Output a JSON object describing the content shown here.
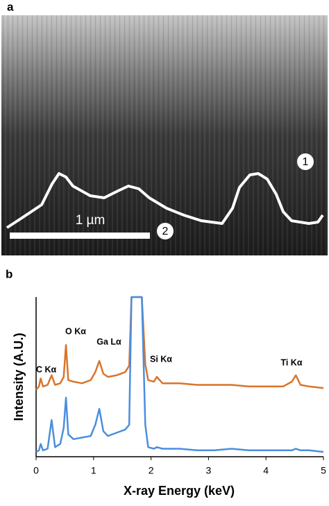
{
  "panel_a": {
    "label": "a",
    "scale_bar": "1 µm",
    "markers": [
      "1",
      "2"
    ]
  },
  "chart_data": {
    "type": "line",
    "label": "b",
    "x_label": "X-ray Energy (keV)",
    "y_label": "Intensity (A.U.)",
    "annotations": [
      "C Kα",
      "O Kα",
      "Ga Lα",
      "Si Kα",
      "Ti Kα"
    ],
    "x": [
      0,
      0.05,
      0.08,
      0.12,
      0.2,
      0.27,
      0.33,
      0.42,
      0.48,
      0.52,
      0.56,
      0.65,
      0.8,
      0.95,
      1.03,
      1.1,
      1.17,
      1.25,
      1.4,
      1.55,
      1.62,
      1.66,
      1.84,
      1.9,
      1.95,
      2.05,
      2.1,
      2.2,
      2.5,
      2.8,
      3.1,
      3.4,
      3.7,
      4.0,
      4.3,
      4.45,
      4.52,
      4.6,
      4.75,
      5.0
    ],
    "series": [
      {
        "color": "#d9742b",
        "values": [
          42,
          44,
          49,
          44,
          45,
          51,
          45,
          46,
          50,
          70,
          48,
          47,
          46,
          48,
          53,
          60,
          52,
          50,
          51,
          53,
          57,
          100,
          100,
          58,
          48,
          47,
          50,
          46,
          46,
          45,
          45,
          45,
          44,
          44,
          44,
          47,
          51,
          45,
          44,
          43
        ]
      },
      {
        "color": "#4a8ee0",
        "values": [
          3,
          4,
          8,
          4,
          5,
          23,
          6,
          8,
          18,
          37,
          14,
          11,
          12,
          13,
          20,
          30,
          16,
          13,
          15,
          17,
          20,
          100,
          100,
          20,
          6,
          5,
          6,
          5,
          5,
          4,
          4,
          5,
          4,
          4,
          4,
          4,
          5,
          4,
          4,
          3
        ]
      }
    ],
    "xlim": [
      0,
      5
    ],
    "xticks": [
      0,
      1,
      2,
      3,
      4,
      5
    ],
    "ylim": [
      0,
      100
    ]
  }
}
